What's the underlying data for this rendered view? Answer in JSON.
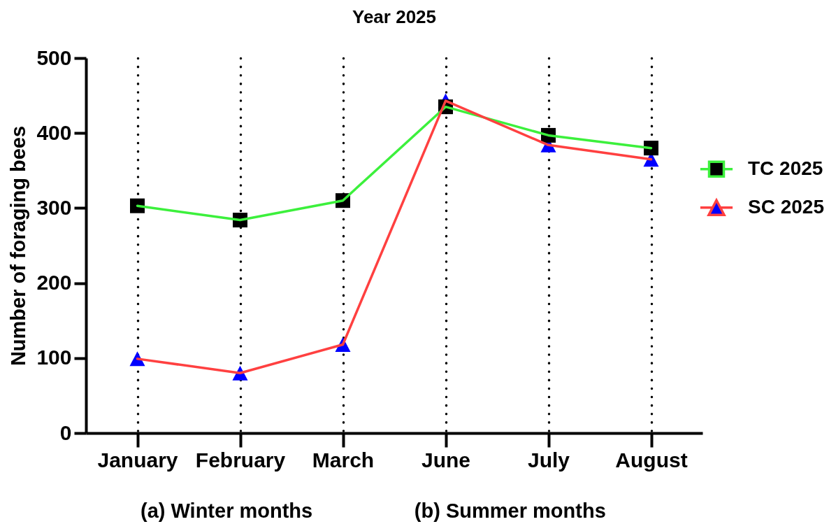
{
  "chart_data": {
    "type": "line",
    "title": "Year 2025",
    "ylabel": "Number of foraging bees",
    "categories": [
      "January",
      "February",
      "March",
      "June",
      "July",
      "August"
    ],
    "series": [
      {
        "name": "TC 2025",
        "color": "#3cf03c",
        "colors": [
          "#000000",
          "#000000",
          "#000000",
          "#000000",
          "#000000",
          "#000000"
        ],
        "marker": "square",
        "values": [
          303,
          284,
          310,
          435,
          397,
          380
        ]
      },
      {
        "name": "SC 2025",
        "color": "#ff4040",
        "colors": [
          "#0000ff",
          "#0000ff",
          "#0000ff",
          "#0000ff",
          "#0000ff",
          "#0000ff"
        ],
        "marker": "triangle",
        "values": [
          99,
          80,
          118,
          443,
          384,
          365
        ]
      }
    ],
    "ylim": [
      0,
      500
    ],
    "yticks": [
      0,
      100,
      200,
      300,
      400,
      500
    ],
    "grid": "x",
    "legend": "right",
    "line_style": "solid",
    "annotations": [
      "(a) Winter months",
      "(b) Summer months"
    ]
  }
}
